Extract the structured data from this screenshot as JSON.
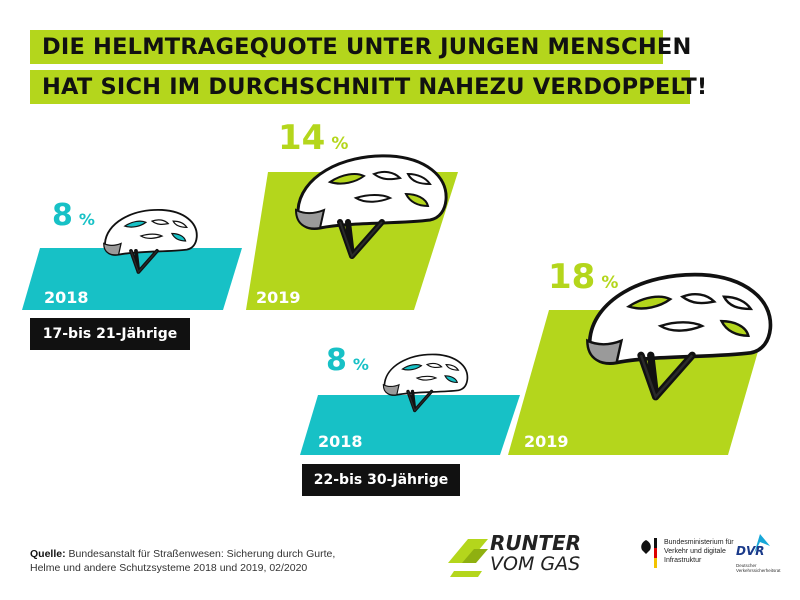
{
  "headline": {
    "line1": "DIE HELMTRAGEQUOTE UNTER JUNGEN MENSCHEN",
    "line2": "HAT SICH IM DURCHSCHNITT NAHEZU VERDOPPELT!"
  },
  "colors": {
    "green": "#b4d61c",
    "teal": "#17c1c6",
    "black": "#111111"
  },
  "chart_data": [
    {
      "type": "bar",
      "title": "17-bis 21-Jährige",
      "categories": [
        "2018",
        "2019"
      ],
      "values": [
        8,
        14
      ],
      "value_labels": [
        "8",
        "14"
      ],
      "unit": "%"
    },
    {
      "type": "bar",
      "title": "22-bis 30-Jährige",
      "categories": [
        "2018",
        "2019"
      ],
      "values": [
        8,
        18
      ],
      "value_labels": [
        "8",
        "18"
      ],
      "unit": "%"
    }
  ],
  "source": {
    "label": "Quelle:",
    "text": "Bundesanstalt für Straßenwesen: Sicherung durch Gurte, Helme und andere Schutzsysteme 2018 und 2019, 02/2020"
  },
  "logos": {
    "runter_line1": "RUNTER",
    "runter_line2": "VOM GAS",
    "ministry": "Bundesministerium für Verkehr und digitale Infrastruktur",
    "dvr": "DVR",
    "dvr_sub": "Deutscher Verkehrssicherheitsrat"
  }
}
